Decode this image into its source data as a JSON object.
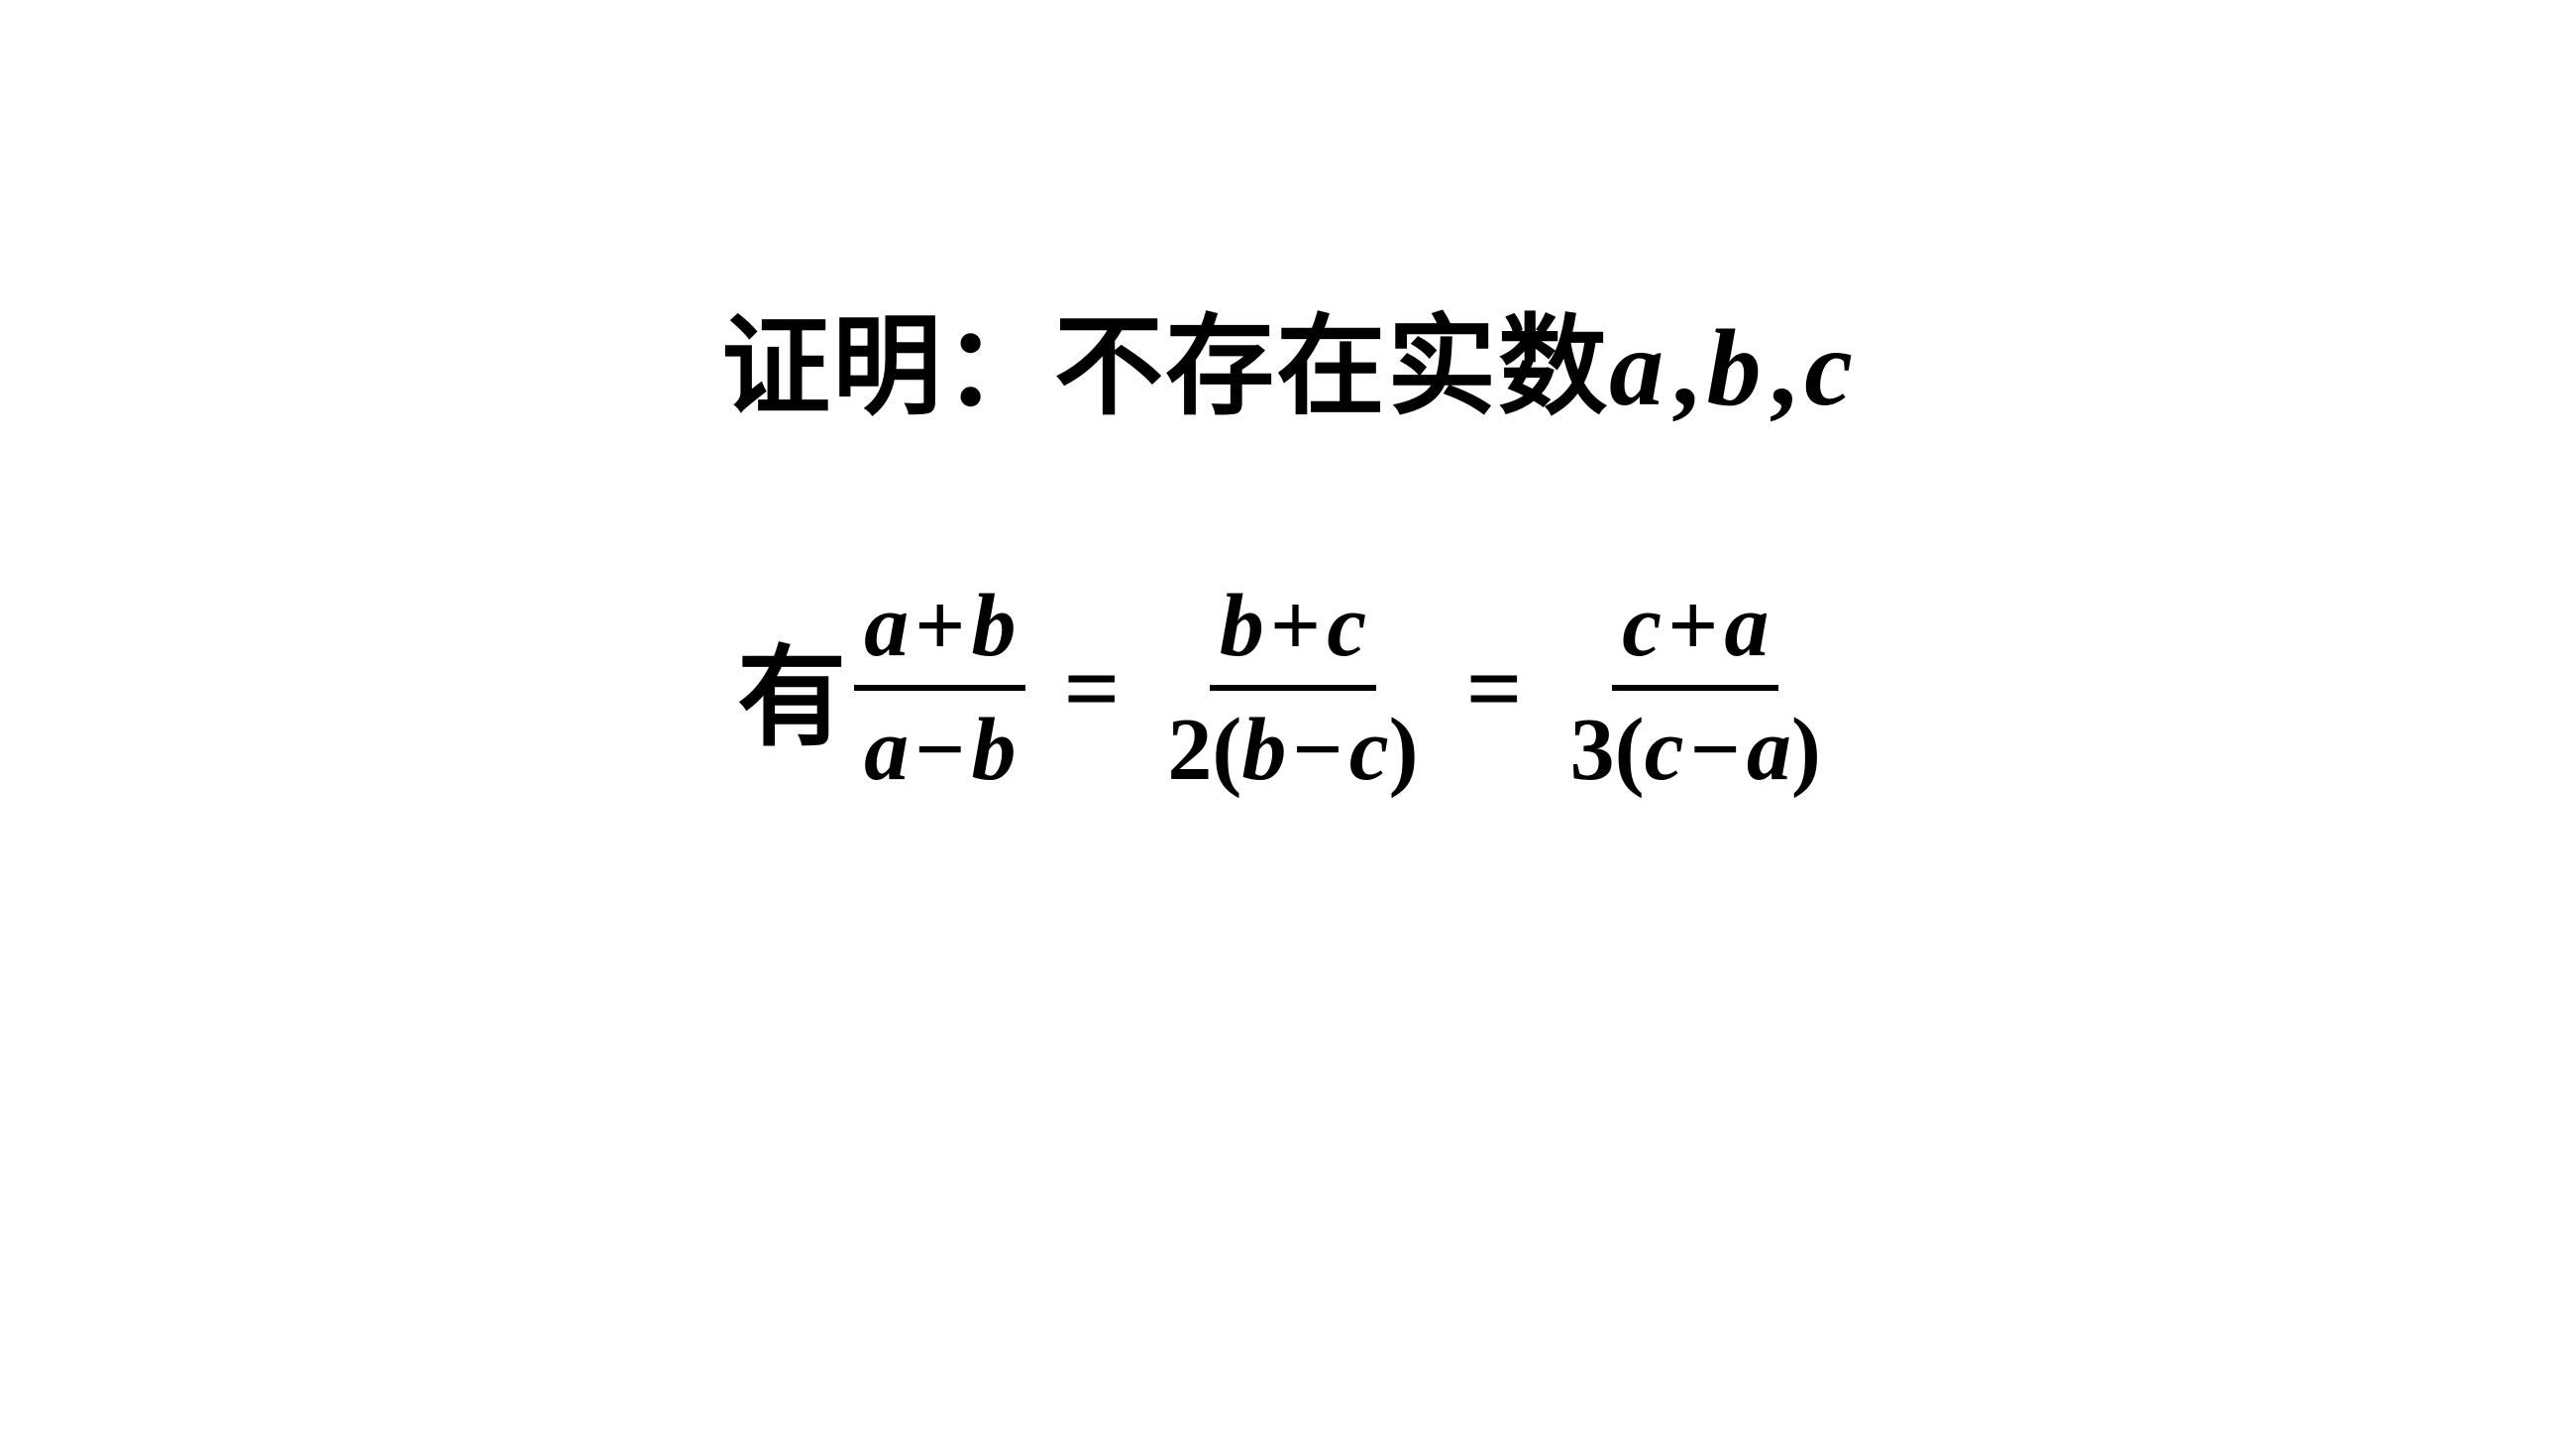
{
  "line1": {
    "prefix": "证明：不存在实数",
    "var_a": "a",
    "comma1": ",",
    "var_b": "b",
    "comma2": ",",
    "var_c": "c"
  },
  "line2": {
    "prefix": "有",
    "frac1": {
      "num_a": "a",
      "num_plus": "+",
      "num_b": "b",
      "den_a": "a",
      "den_minus": "−",
      "den_b": "b"
    },
    "eq1": "=",
    "frac2": {
      "num_b": "b",
      "num_plus": "+",
      "num_c": "c",
      "den_coef": "2",
      "den_lp": "(",
      "den_b": "b",
      "den_minus": "−",
      "den_c": "c",
      "den_rp": ")"
    },
    "eq2": "=",
    "frac3": {
      "num_c": "c",
      "num_plus": "+",
      "num_a": "a",
      "den_coef": "3",
      "den_lp": "(",
      "den_c": "c",
      "den_minus": "−",
      "den_a": "a",
      "den_rp": ")"
    }
  },
  "styles": {
    "background_color": "#ffffff",
    "text_color": "#000000",
    "line1_fontsize": 110,
    "line2_fontsize": 90,
    "eq_fontsize": 100,
    "fraction_bar_thickness": 6,
    "font_family_cjk": "SimSun",
    "font_family_math": "Times New Roman",
    "font_weight": "bold",
    "math_style": "italic"
  }
}
